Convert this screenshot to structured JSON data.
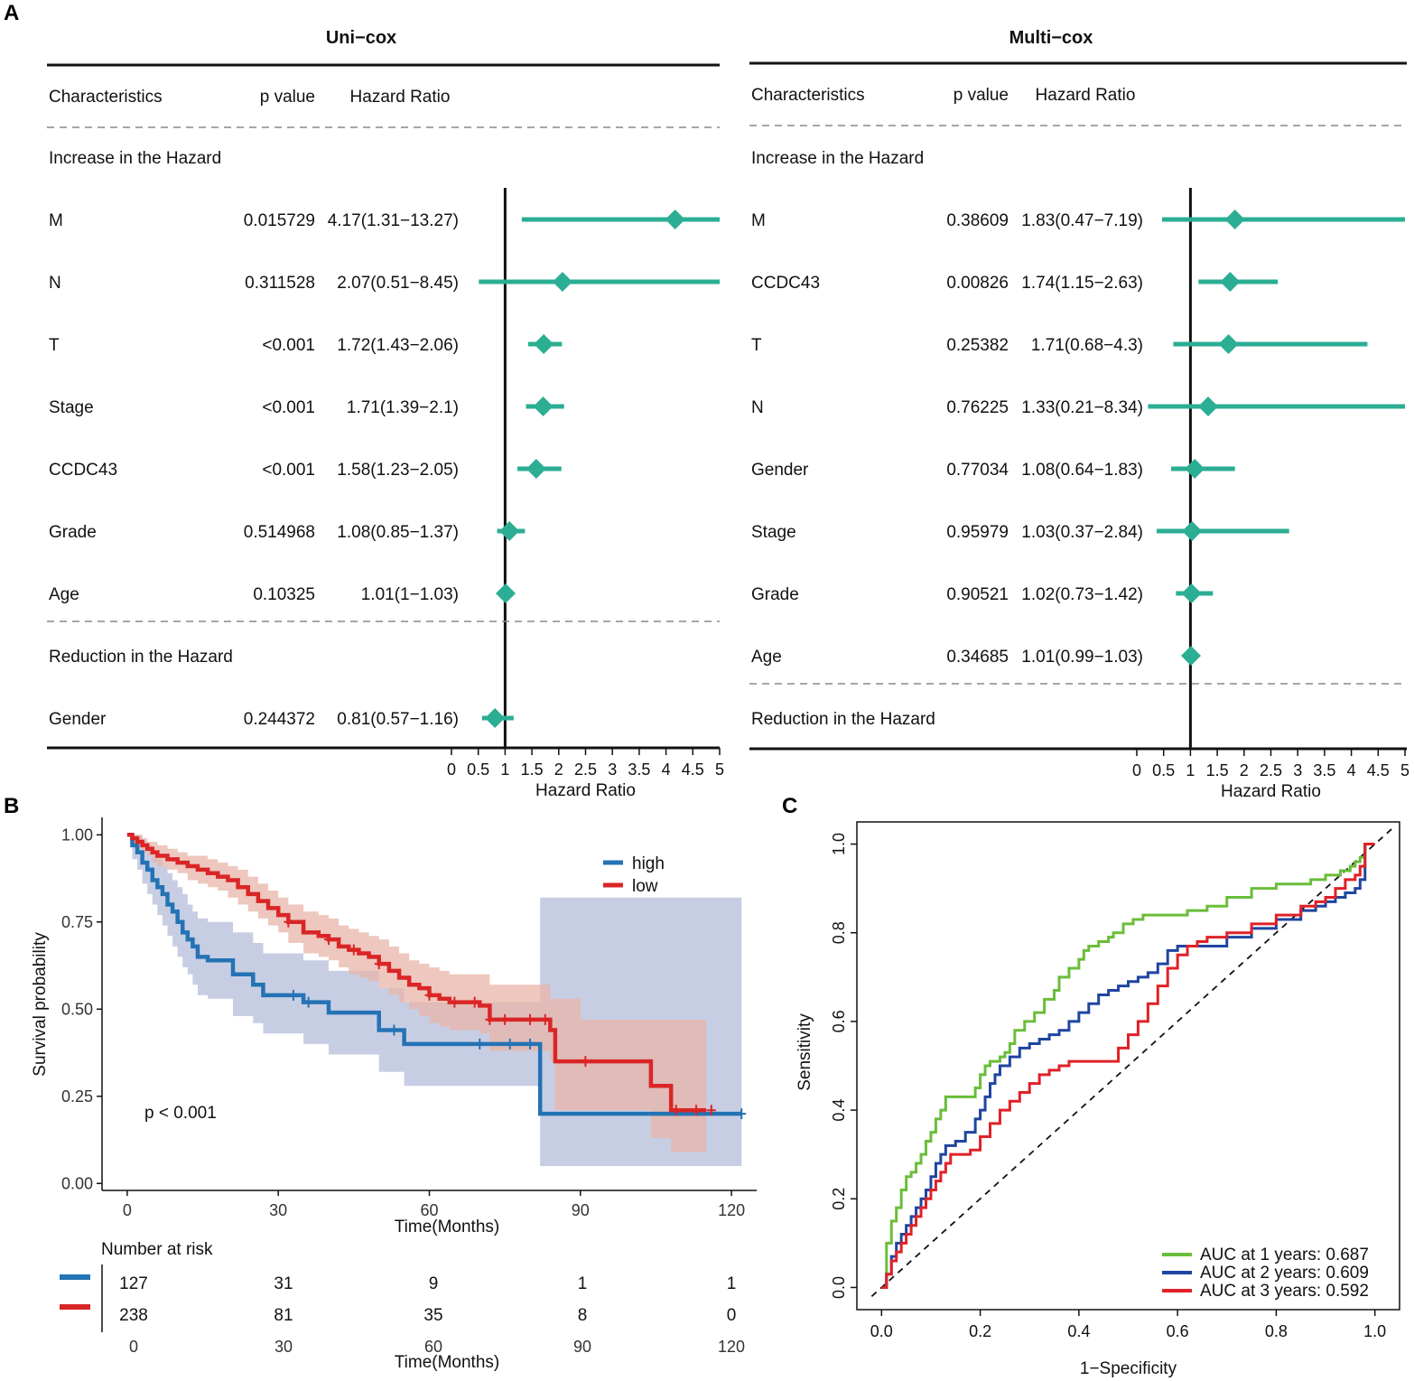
{
  "panel_labels": {
    "a": "A",
    "b": "B",
    "c": "C"
  },
  "colors": {
    "forest": "#2BAE93",
    "high": "#2473B4",
    "low": "#DA2526",
    "high_band": "#C1C9E1",
    "low_band": "#E8B4A8",
    "overlap_band": "#B99895",
    "roc1": "#6ABD3A",
    "roc2": "#1F45A0",
    "roc3": "#E02127"
  },
  "chart_data": [
    {
      "type": "forest",
      "title": "Uni−cox",
      "columns": {
        "characteristics": "Characteristics",
        "pvalue": "p value",
        "hr": "Hazard Ratio"
      },
      "group_increase": "Increase in the Hazard",
      "group_reduction": "Reduction in the Hazard",
      "xlabel": "Hazard Ratio",
      "xlim": [
        0,
        5
      ],
      "xticks": [
        "0",
        "0.5",
        "1",
        "1.5",
        "2",
        "2.5",
        "3",
        "3.5",
        "4",
        "4.5",
        "5"
      ],
      "rows": [
        {
          "name": "M",
          "p": "0.015729",
          "hr_text": "4.17(1.31−13.27)",
          "hr": 4.17,
          "lo": 1.31,
          "hi": 13.27,
          "group": "increase"
        },
        {
          "name": "N",
          "p": "0.311528",
          "hr_text": "2.07(0.51−8.45)",
          "hr": 2.07,
          "lo": 0.51,
          "hi": 8.45,
          "group": "increase"
        },
        {
          "name": "T",
          "p": "<0.001",
          "hr_text": "1.72(1.43−2.06)",
          "hr": 1.72,
          "lo": 1.43,
          "hi": 2.06,
          "group": "increase"
        },
        {
          "name": "Stage",
          "p": "<0.001",
          "hr_text": "1.71(1.39−2.1)",
          "hr": 1.71,
          "lo": 1.39,
          "hi": 2.1,
          "group": "increase"
        },
        {
          "name": "CCDC43",
          "p": "<0.001",
          "hr_text": "1.58(1.23−2.05)",
          "hr": 1.58,
          "lo": 1.23,
          "hi": 2.05,
          "group": "increase"
        },
        {
          "name": "Grade",
          "p": "0.514968",
          "hr_text": "1.08(0.85−1.37)",
          "hr": 1.08,
          "lo": 0.85,
          "hi": 1.37,
          "group": "increase"
        },
        {
          "name": "Age",
          "p": "0.10325",
          "hr_text": "1.01(1−1.03)",
          "hr": 1.01,
          "lo": 1.0,
          "hi": 1.03,
          "group": "increase"
        },
        {
          "name": "Gender",
          "p": "0.244372",
          "hr_text": "0.81(0.57−1.16)",
          "hr": 0.81,
          "lo": 0.57,
          "hi": 1.16,
          "group": "reduction"
        }
      ]
    },
    {
      "type": "forest",
      "title": "Multi−cox",
      "columns": {
        "characteristics": "Characteristics",
        "pvalue": "p value",
        "hr": "Hazard Ratio"
      },
      "group_increase": "Increase in the Hazard",
      "group_reduction": "Reduction in the Hazard",
      "xlabel": "Hazard Ratio",
      "xlim": [
        0,
        5
      ],
      "xticks": [
        "0",
        "0.5",
        "1",
        "1.5",
        "2",
        "2.5",
        "3",
        "3.5",
        "4",
        "4.5",
        "5"
      ],
      "rows": [
        {
          "name": "M",
          "p": "0.38609",
          "hr_text": "1.83(0.47−7.19)",
          "hr": 1.83,
          "lo": 0.47,
          "hi": 7.19,
          "group": "increase"
        },
        {
          "name": "CCDC43",
          "p": "0.00826",
          "hr_text": "1.74(1.15−2.63)",
          "hr": 1.74,
          "lo": 1.15,
          "hi": 2.63,
          "group": "increase"
        },
        {
          "name": "T",
          "p": "0.25382",
          "hr_text": "1.71(0.68−4.3)",
          "hr": 1.71,
          "lo": 0.68,
          "hi": 4.3,
          "group": "increase"
        },
        {
          "name": "N",
          "p": "0.76225",
          "hr_text": "1.33(0.21−8.34)",
          "hr": 1.33,
          "lo": 0.21,
          "hi": 8.34,
          "group": "increase"
        },
        {
          "name": "Gender",
          "p": "0.77034",
          "hr_text": "1.08(0.64−1.83)",
          "hr": 1.08,
          "lo": 0.64,
          "hi": 1.83,
          "group": "increase"
        },
        {
          "name": "Stage",
          "p": "0.95979",
          "hr_text": "1.03(0.37−2.84)",
          "hr": 1.03,
          "lo": 0.37,
          "hi": 2.84,
          "group": "increase"
        },
        {
          "name": "Grade",
          "p": "0.90521",
          "hr_text": "1.02(0.73−1.42)",
          "hr": 1.02,
          "lo": 0.73,
          "hi": 1.42,
          "group": "increase"
        },
        {
          "name": "Age",
          "p": "0.34685",
          "hr_text": "1.01(0.99−1.03)",
          "hr": 1.01,
          "lo": 0.99,
          "hi": 1.03,
          "group": "increase"
        }
      ]
    },
    {
      "type": "line",
      "subtype": "kaplan-meier",
      "xlabel": "Time(Months)",
      "ylabel": "Survival probability",
      "xlim": [
        -5,
        125
      ],
      "ylim": [
        -0.02,
        1.05
      ],
      "xticks": [
        0,
        30,
        60,
        90,
        120
      ],
      "yticks": [
        "0.00",
        "0.25",
        "0.50",
        "0.75",
        "1.00"
      ],
      "pvalue": "p < 0.001",
      "legend": [
        "high",
        "low"
      ],
      "series": [
        {
          "name": "high",
          "x": [
            0,
            1,
            2,
            3,
            4,
            5,
            6,
            7,
            8,
            9,
            10,
            11,
            12,
            13,
            14,
            16,
            18,
            20,
            21,
            22,
            25,
            27,
            30,
            32,
            35,
            37,
            40,
            42,
            45,
            50,
            55,
            70,
            75,
            81,
            82,
            92,
            122
          ],
          "y": [
            1.0,
            0.97,
            0.95,
            0.92,
            0.9,
            0.87,
            0.85,
            0.83,
            0.8,
            0.78,
            0.75,
            0.72,
            0.7,
            0.68,
            0.65,
            0.64,
            0.64,
            0.64,
            0.6,
            0.6,
            0.57,
            0.54,
            0.54,
            0.54,
            0.52,
            0.52,
            0.49,
            0.49,
            0.49,
            0.44,
            0.4,
            0.4,
            0.4,
            0.4,
            0.2,
            0.2,
            0.2
          ],
          "lower": [
            1.0,
            0.93,
            0.9,
            0.86,
            0.83,
            0.8,
            0.77,
            0.74,
            0.71,
            0.68,
            0.65,
            0.62,
            0.6,
            0.57,
            0.54,
            0.53,
            0.53,
            0.53,
            0.48,
            0.48,
            0.46,
            0.43,
            0.43,
            0.43,
            0.4,
            0.4,
            0.37,
            0.37,
            0.37,
            0.32,
            0.28,
            0.28,
            0.28,
            0.28,
            0.05,
            0.05,
            0.05
          ],
          "upper": [
            1.0,
            1.0,
            1.0,
            0.98,
            0.97,
            0.95,
            0.93,
            0.91,
            0.89,
            0.87,
            0.85,
            0.83,
            0.8,
            0.78,
            0.76,
            0.75,
            0.75,
            0.75,
            0.72,
            0.72,
            0.69,
            0.66,
            0.66,
            0.66,
            0.64,
            0.64,
            0.61,
            0.61,
            0.61,
            0.56,
            0.52,
            0.52,
            0.52,
            0.52,
            0.82,
            0.82,
            0.82
          ],
          "censor_x": [
            33,
            36,
            53,
            70,
            76,
            80,
            122
          ]
        },
        {
          "name": "low",
          "x": [
            0,
            1,
            2,
            3,
            4,
            5,
            6,
            8,
            10,
            12,
            14,
            16,
            18,
            20,
            22,
            24,
            26,
            28,
            30,
            32,
            35,
            38,
            40,
            42,
            44,
            46,
            48,
            50,
            52,
            54,
            56,
            58,
            60,
            62,
            64,
            66,
            70,
            72,
            82,
            84,
            85,
            90,
            95,
            100,
            104,
            108,
            115
          ],
          "y": [
            1.0,
            0.99,
            0.98,
            0.97,
            0.96,
            0.95,
            0.94,
            0.93,
            0.92,
            0.91,
            0.9,
            0.89,
            0.88,
            0.87,
            0.85,
            0.83,
            0.81,
            0.79,
            0.77,
            0.75,
            0.72,
            0.71,
            0.7,
            0.68,
            0.67,
            0.66,
            0.65,
            0.63,
            0.61,
            0.59,
            0.57,
            0.56,
            0.54,
            0.53,
            0.52,
            0.52,
            0.51,
            0.47,
            0.47,
            0.44,
            0.35,
            0.35,
            0.35,
            0.35,
            0.28,
            0.21,
            0.21
          ],
          "lower": [
            1.0,
            0.98,
            0.96,
            0.95,
            0.94,
            0.92,
            0.91,
            0.9,
            0.89,
            0.87,
            0.86,
            0.85,
            0.84,
            0.82,
            0.8,
            0.78,
            0.76,
            0.74,
            0.72,
            0.69,
            0.66,
            0.65,
            0.64,
            0.62,
            0.6,
            0.59,
            0.58,
            0.56,
            0.54,
            0.52,
            0.5,
            0.48,
            0.46,
            0.45,
            0.44,
            0.44,
            0.43,
            0.38,
            0.38,
            0.35,
            0.21,
            0.21,
            0.21,
            0.21,
            0.13,
            0.09,
            0.09
          ],
          "upper": [
            1.0,
            1.0,
            1.0,
            0.99,
            0.98,
            0.98,
            0.97,
            0.96,
            0.95,
            0.94,
            0.94,
            0.93,
            0.92,
            0.91,
            0.9,
            0.88,
            0.86,
            0.84,
            0.82,
            0.8,
            0.78,
            0.77,
            0.76,
            0.74,
            0.73,
            0.72,
            0.71,
            0.7,
            0.68,
            0.66,
            0.64,
            0.63,
            0.62,
            0.61,
            0.6,
            0.6,
            0.6,
            0.57,
            0.57,
            0.53,
            0.53,
            0.47,
            0.47,
            0.47,
            0.47,
            0.47,
            0.47
          ],
          "censor_x": [
            32,
            40,
            45,
            50,
            60,
            65,
            69,
            72,
            75,
            80,
            83,
            91,
            109,
            113,
            116
          ]
        }
      ],
      "risk_table": {
        "title": "Number at risk",
        "times": [
          0,
          30,
          60,
          90,
          120
        ],
        "rows": [
          {
            "name": "high",
            "counts": [
              "127",
              "31",
              "9",
              "1",
              "1"
            ]
          },
          {
            "name": "low",
            "counts": [
              "238",
              "81",
              "35",
              "8",
              "0"
            ]
          }
        ]
      }
    },
    {
      "type": "line",
      "subtype": "roc",
      "xlabel": "1−Specificity",
      "ylabel": "Sensitivity",
      "xlim": [
        -0.05,
        1.05
      ],
      "ylim": [
        -0.05,
        1.05
      ],
      "xticks": [
        "0.0",
        "0.2",
        "0.4",
        "0.6",
        "0.8",
        "1.0"
      ],
      "yticks": [
        "0.0",
        "0.2",
        "0.4",
        "0.6",
        "0.8",
        "1.0"
      ],
      "series": [
        {
          "name": "AUC at 1 years: 0.687",
          "x": [
            0,
            0.01,
            0.01,
            0.02,
            0.02,
            0.03,
            0.04,
            0.04,
            0.05,
            0.05,
            0.06,
            0.07,
            0.08,
            0.08,
            0.09,
            0.1,
            0.11,
            0.12,
            0.13,
            0.13,
            0.14,
            0.18,
            0.19,
            0.2,
            0.21,
            0.22,
            0.24,
            0.25,
            0.26,
            0.27,
            0.29,
            0.31,
            0.33,
            0.35,
            0.36,
            0.38,
            0.4,
            0.41,
            0.42,
            0.44,
            0.46,
            0.47,
            0.49,
            0.51,
            0.53,
            0.55,
            0.58,
            0.62,
            0.66,
            0.7,
            0.75,
            0.8,
            0.84,
            0.87,
            0.9,
            0.93,
            0.95,
            0.96,
            0.97,
            0.98,
            1.0
          ],
          "y": [
            0,
            0.05,
            0.1,
            0.1,
            0.15,
            0.18,
            0.2,
            0.22,
            0.22,
            0.25,
            0.26,
            0.28,
            0.29,
            0.3,
            0.33,
            0.35,
            0.38,
            0.4,
            0.42,
            0.43,
            0.43,
            0.43,
            0.45,
            0.48,
            0.5,
            0.51,
            0.52,
            0.53,
            0.55,
            0.58,
            0.6,
            0.62,
            0.65,
            0.67,
            0.7,
            0.72,
            0.74,
            0.76,
            0.77,
            0.78,
            0.79,
            0.8,
            0.82,
            0.83,
            0.84,
            0.84,
            0.84,
            0.85,
            0.86,
            0.88,
            0.9,
            0.91,
            0.91,
            0.92,
            0.93,
            0.94,
            0.95,
            0.96,
            0.97,
            1.0,
            1.0
          ]
        },
        {
          "name": "AUC at 2 years: 0.609",
          "x": [
            0,
            0.01,
            0.02,
            0.03,
            0.04,
            0.05,
            0.06,
            0.07,
            0.08,
            0.09,
            0.1,
            0.11,
            0.12,
            0.13,
            0.15,
            0.17,
            0.19,
            0.2,
            0.21,
            0.22,
            0.23,
            0.24,
            0.26,
            0.28,
            0.3,
            0.32,
            0.34,
            0.36,
            0.38,
            0.4,
            0.42,
            0.44,
            0.46,
            0.48,
            0.5,
            0.52,
            0.54,
            0.56,
            0.58,
            0.6,
            0.62,
            0.64,
            0.66,
            0.7,
            0.75,
            0.8,
            0.85,
            0.88,
            0.9,
            0.92,
            0.94,
            0.96,
            0.97,
            0.98,
            1.0
          ],
          "y": [
            0,
            0.03,
            0.07,
            0.1,
            0.12,
            0.14,
            0.16,
            0.18,
            0.2,
            0.22,
            0.25,
            0.28,
            0.3,
            0.32,
            0.33,
            0.35,
            0.38,
            0.4,
            0.43,
            0.46,
            0.48,
            0.5,
            0.52,
            0.54,
            0.55,
            0.56,
            0.57,
            0.58,
            0.6,
            0.62,
            0.64,
            0.66,
            0.67,
            0.68,
            0.69,
            0.7,
            0.71,
            0.73,
            0.76,
            0.77,
            0.77,
            0.77,
            0.77,
            0.79,
            0.81,
            0.83,
            0.85,
            0.86,
            0.87,
            0.88,
            0.89,
            0.9,
            0.92,
            1.0,
            1.0
          ]
        },
        {
          "name": "AUC at 3 years: 0.592",
          "x": [
            0,
            0.01,
            0.02,
            0.03,
            0.04,
            0.05,
            0.06,
            0.07,
            0.08,
            0.09,
            0.1,
            0.11,
            0.12,
            0.13,
            0.14,
            0.16,
            0.18,
            0.2,
            0.22,
            0.24,
            0.26,
            0.28,
            0.3,
            0.32,
            0.34,
            0.36,
            0.38,
            0.4,
            0.42,
            0.44,
            0.46,
            0.48,
            0.5,
            0.52,
            0.54,
            0.56,
            0.58,
            0.6,
            0.62,
            0.64,
            0.66,
            0.7,
            0.75,
            0.8,
            0.85,
            0.88,
            0.9,
            0.92,
            0.94,
            0.96,
            0.97,
            0.98,
            1.0
          ],
          "y": [
            0,
            0.03,
            0.06,
            0.08,
            0.1,
            0.12,
            0.14,
            0.16,
            0.18,
            0.2,
            0.22,
            0.24,
            0.26,
            0.28,
            0.3,
            0.3,
            0.31,
            0.34,
            0.37,
            0.4,
            0.42,
            0.44,
            0.46,
            0.48,
            0.49,
            0.5,
            0.51,
            0.51,
            0.51,
            0.51,
            0.51,
            0.54,
            0.57,
            0.6,
            0.64,
            0.68,
            0.72,
            0.75,
            0.77,
            0.78,
            0.79,
            0.8,
            0.82,
            0.84,
            0.86,
            0.87,
            0.88,
            0.9,
            0.92,
            0.93,
            0.95,
            1.0,
            1.0
          ]
        }
      ],
      "reference_line": "diagonal",
      "legend_position": "bottom-right"
    }
  ]
}
